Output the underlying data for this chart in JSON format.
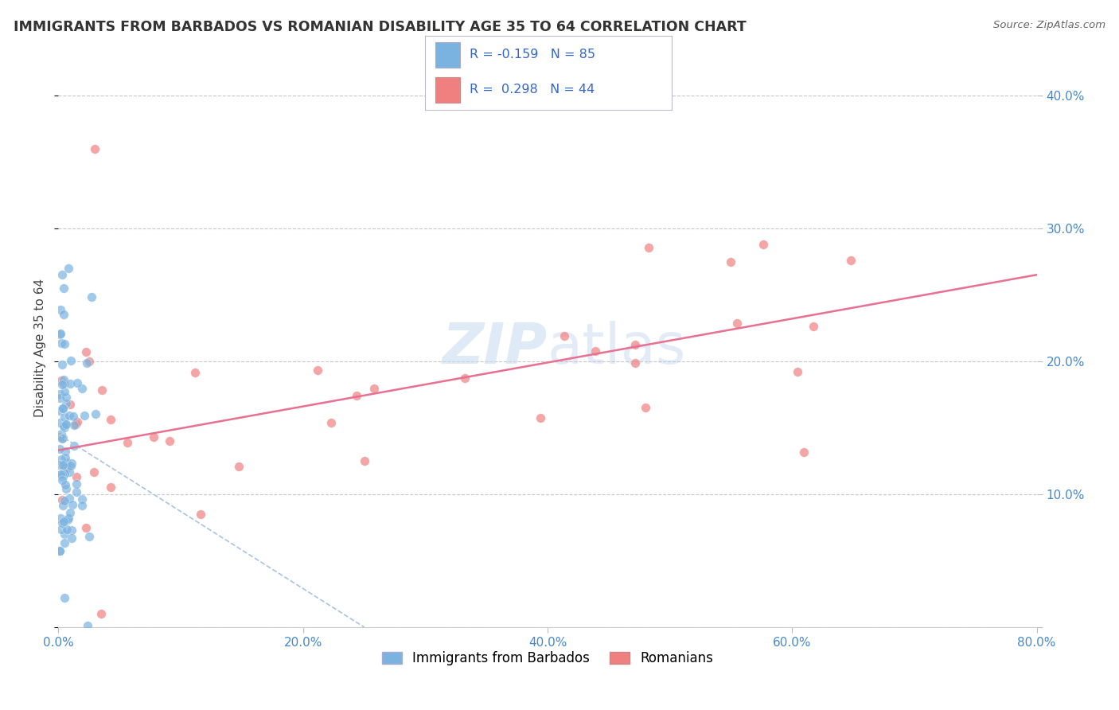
{
  "title": "IMMIGRANTS FROM BARBADOS VS ROMANIAN DISABILITY AGE 35 TO 64 CORRELATION CHART",
  "source_text": "Source: ZipAtlas.com",
  "ylabel": "Disability Age 35 to 64",
  "r_barbados": -0.159,
  "n_barbados": 85,
  "r_romanian": 0.298,
  "n_romanian": 44,
  "barbados_color": "#7ab3e0",
  "romanian_color": "#f08080",
  "trend_barbados_color": "#a8c4e0",
  "trend_romanian_color": "#e87090",
  "background_color": "#ffffff",
  "grid_color": "#c8c8c8",
  "axis_label_color": "#4488cc",
  "title_color": "#333333",
  "watermark_color": "#c8dcf0",
  "xlim": [
    0.0,
    0.8
  ],
  "ylim": [
    0.0,
    0.42
  ],
  "x_tick_vals": [
    0.0,
    0.2,
    0.4,
    0.6,
    0.8
  ],
  "x_tick_labels": [
    "0.0%",
    "20.0%",
    "40.0%",
    "60.0%",
    "80.0%"
  ],
  "y_tick_vals": [
    0.0,
    0.1,
    0.2,
    0.3,
    0.4
  ],
  "y_tick_labels": [
    "",
    "10.0%",
    "20.0%",
    "30.0%",
    "40.0%"
  ],
  "legend_labels": [
    "Immigrants from Barbados",
    "Romanians"
  ],
  "barb_trend_x0": 0.0,
  "barb_trend_y0": 0.145,
  "barb_trend_x1": 0.25,
  "barb_trend_y1": 0.0,
  "rom_trend_x0": 0.0,
  "rom_trend_y0": 0.133,
  "rom_trend_x1": 0.8,
  "rom_trend_y1": 0.265
}
